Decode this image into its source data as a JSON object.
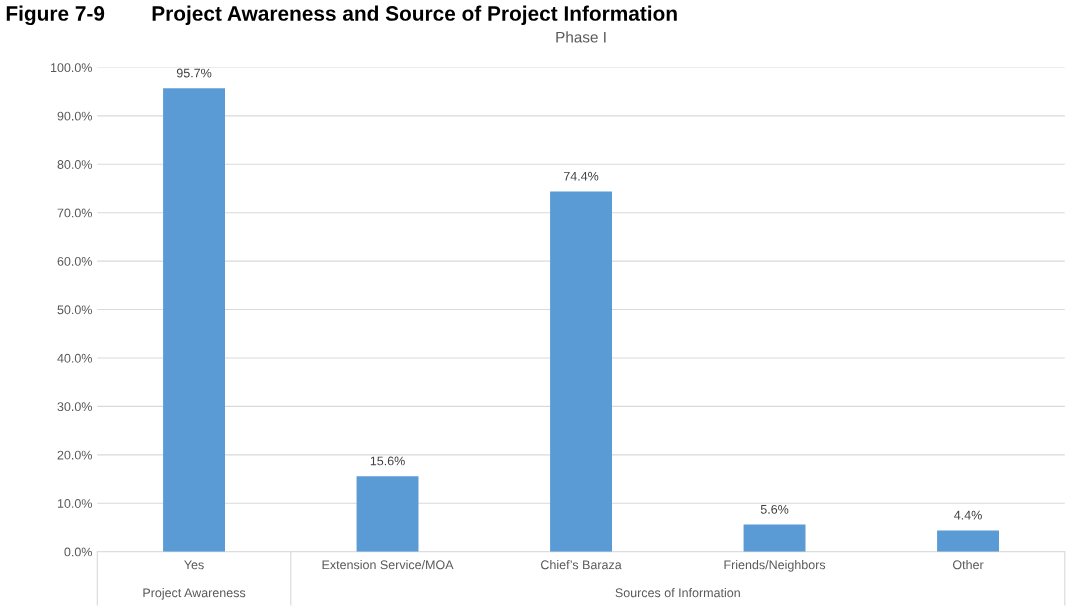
{
  "chart_data": {
    "type": "bar",
    "title": "Figure 7-9        Project Awareness and Source of Project Information",
    "subtitle": "Phase I",
    "categories": [
      "Yes",
      "Extension Service/MOA",
      "Chief’s Baraza",
      "Friends/Neighbors",
      "Other"
    ],
    "values": [
      95.7,
      15.6,
      74.4,
      5.6,
      4.4
    ],
    "value_labels": [
      "95.7%",
      "15.6%",
      "74.4%",
      "5.6%",
      "4.4%"
    ],
    "color": "#5b9bd5",
    "annotations": [
      "Project Awareness",
      "Sources of Information"
    ],
    "ylim": [
      0,
      100
    ],
    "yticks": [
      {
        "value": 0,
        "label": "0.0%"
      },
      {
        "value": 10,
        "label": "10.0%"
      },
      {
        "value": 20,
        "label": "20.0%"
      },
      {
        "value": 30,
        "label": "30.0%"
      },
      {
        "value": 40,
        "label": "40.0%"
      },
      {
        "value": 50,
        "label": "50.0%"
      },
      {
        "value": 60,
        "label": "60.0%"
      },
      {
        "value": 70,
        "label": "70.0%"
      },
      {
        "value": 80,
        "label": "80.0%"
      },
      {
        "value": 90,
        "label": "90.0%"
      },
      {
        "value": 100,
        "label": "100.0%"
      }
    ],
    "grid": "y"
  }
}
